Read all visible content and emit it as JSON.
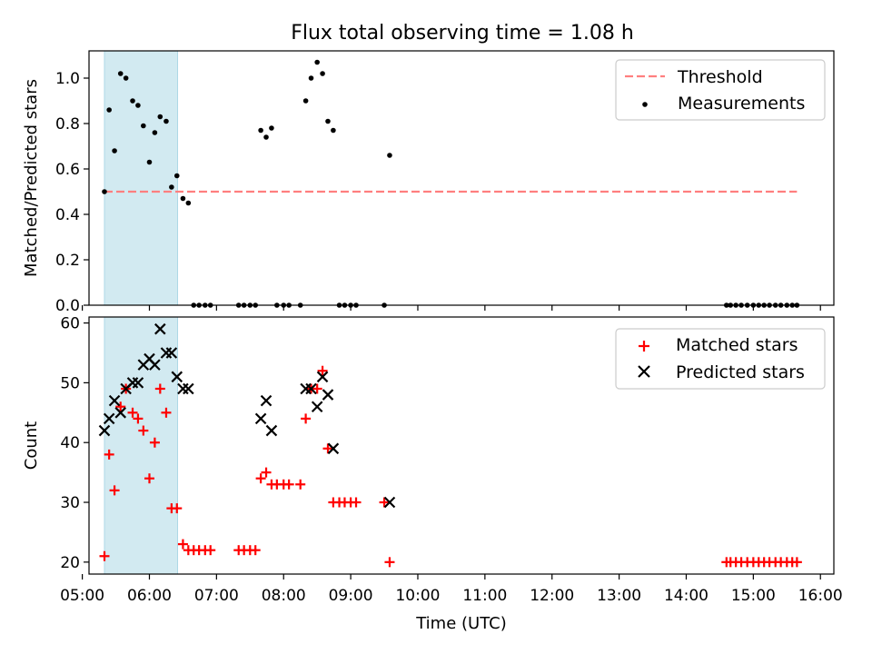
{
  "title": "Flux total observing time = 1.08 h",
  "colors": {
    "threshold": "#ff7f7f",
    "measurement": "#000000",
    "matched": "#ff0000",
    "predicted": "#000000",
    "span": "#add8e6"
  },
  "chart_data": [
    {
      "type": "scatter",
      "ylabel": "Matched/Predicted stars",
      "xlim": [
        5.1,
        16.2
      ],
      "ylim": [
        0.0,
        1.12
      ],
      "yticks": [
        "0.0",
        "0.2",
        "0.4",
        "0.6",
        "0.8",
        "1.0"
      ],
      "legend_position": "upper right",
      "shaded_span": [
        5.33,
        6.42
      ],
      "threshold": {
        "label": "Threshold",
        "y": 0.5,
        "x": [
          5.33,
          15.65
        ],
        "style": "dashed"
      },
      "series": [
        {
          "name": "Measurements",
          "marker": "dot",
          "points": [
            [
              5.33,
              0.5
            ],
            [
              5.4,
              0.86
            ],
            [
              5.48,
              0.68
            ],
            [
              5.57,
              1.02
            ],
            [
              5.65,
              1.0
            ],
            [
              5.75,
              0.9
            ],
            [
              5.83,
              0.88
            ],
            [
              5.91,
              0.79
            ],
            [
              6.0,
              0.63
            ],
            [
              6.08,
              0.76
            ],
            [
              6.16,
              0.83
            ],
            [
              6.25,
              0.81
            ],
            [
              6.33,
              0.52
            ],
            [
              6.41,
              0.57
            ],
            [
              6.5,
              0.47
            ],
            [
              6.58,
              0.45
            ],
            [
              6.66,
              0.0
            ],
            [
              6.74,
              0.0
            ],
            [
              6.83,
              0.0
            ],
            [
              6.91,
              0.0
            ],
            [
              7.33,
              0.0
            ],
            [
              7.41,
              0.0
            ],
            [
              7.5,
              0.0
            ],
            [
              7.58,
              0.0
            ],
            [
              7.66,
              0.77
            ],
            [
              7.74,
              0.74
            ],
            [
              7.82,
              0.78
            ],
            [
              7.9,
              0.0
            ],
            [
              8.0,
              0.0
            ],
            [
              8.08,
              0.0
            ],
            [
              8.25,
              0.0
            ],
            [
              8.33,
              0.9
            ],
            [
              8.41,
              1.0
            ],
            [
              8.5,
              1.07
            ],
            [
              8.58,
              1.02
            ],
            [
              8.66,
              0.81
            ],
            [
              8.74,
              0.77
            ],
            [
              8.83,
              0.0
            ],
            [
              8.91,
              0.0
            ],
            [
              9.0,
              0.0
            ],
            [
              9.08,
              0.0
            ],
            [
              9.5,
              0.0
            ],
            [
              9.58,
              0.66
            ],
            [
              14.6,
              0.0
            ],
            [
              14.66,
              0.0
            ],
            [
              14.74,
              0.0
            ],
            [
              14.82,
              0.0
            ],
            [
              14.91,
              0.0
            ],
            [
              15.0,
              0.0
            ],
            [
              15.08,
              0.0
            ],
            [
              15.16,
              0.0
            ],
            [
              15.24,
              0.0
            ],
            [
              15.33,
              0.0
            ],
            [
              15.41,
              0.0
            ],
            [
              15.5,
              0.0
            ],
            [
              15.58,
              0.0
            ],
            [
              15.65,
              0.0
            ]
          ]
        }
      ]
    },
    {
      "type": "scatter",
      "ylabel": "Count",
      "xlabel": "Time (UTC)",
      "xlim": [
        5.1,
        16.2
      ],
      "ylim": [
        18,
        61
      ],
      "yticks": [
        "20",
        "30",
        "40",
        "50",
        "60"
      ],
      "xticks": [
        "05:00",
        "06:00",
        "07:00",
        "08:00",
        "09:00",
        "10:00",
        "11:00",
        "12:00",
        "13:00",
        "14:00",
        "15:00",
        "16:00"
      ],
      "legend_position": "upper right",
      "shaded_span": [
        5.33,
        6.42
      ],
      "series": [
        {
          "name": "Matched stars",
          "marker": "plus",
          "points": [
            [
              5.33,
              21
            ],
            [
              5.4,
              38
            ],
            [
              5.48,
              32
            ],
            [
              5.57,
              46
            ],
            [
              5.65,
              49
            ],
            [
              5.75,
              45
            ],
            [
              5.83,
              44
            ],
            [
              5.91,
              42
            ],
            [
              6.0,
              34
            ],
            [
              6.08,
              40
            ],
            [
              6.16,
              49
            ],
            [
              6.25,
              45
            ],
            [
              6.33,
              29
            ],
            [
              6.41,
              29
            ],
            [
              6.5,
              23
            ],
            [
              6.58,
              22
            ],
            [
              6.66,
              22
            ],
            [
              6.74,
              22
            ],
            [
              6.83,
              22
            ],
            [
              6.91,
              22
            ],
            [
              7.33,
              22
            ],
            [
              7.41,
              22
            ],
            [
              7.5,
              22
            ],
            [
              7.58,
              22
            ],
            [
              7.66,
              34
            ],
            [
              7.74,
              35
            ],
            [
              7.82,
              33
            ],
            [
              7.9,
              33
            ],
            [
              8.0,
              33
            ],
            [
              8.08,
              33
            ],
            [
              8.25,
              33
            ],
            [
              8.33,
              44
            ],
            [
              8.41,
              49
            ],
            [
              8.5,
              49
            ],
            [
              8.58,
              52
            ],
            [
              8.66,
              39
            ],
            [
              8.74,
              30
            ],
            [
              8.83,
              30
            ],
            [
              8.91,
              30
            ],
            [
              9.0,
              30
            ],
            [
              9.08,
              30
            ],
            [
              9.5,
              30
            ],
            [
              9.58,
              20
            ],
            [
              14.6,
              20
            ],
            [
              14.66,
              20
            ],
            [
              14.74,
              20
            ],
            [
              14.82,
              20
            ],
            [
              14.91,
              20
            ],
            [
              15.0,
              20
            ],
            [
              15.08,
              20
            ],
            [
              15.16,
              20
            ],
            [
              15.24,
              20
            ],
            [
              15.33,
              20
            ],
            [
              15.41,
              20
            ],
            [
              15.5,
              20
            ],
            [
              15.58,
              20
            ],
            [
              15.65,
              20
            ]
          ]
        },
        {
          "name": "Predicted stars",
          "marker": "x",
          "points": [
            [
              5.33,
              42
            ],
            [
              5.4,
              44
            ],
            [
              5.48,
              47
            ],
            [
              5.57,
              45
            ],
            [
              5.65,
              49
            ],
            [
              5.75,
              50
            ],
            [
              5.83,
              50
            ],
            [
              5.91,
              53
            ],
            [
              6.0,
              54
            ],
            [
              6.08,
              53
            ],
            [
              6.16,
              59
            ],
            [
              6.25,
              55
            ],
            [
              6.33,
              55
            ],
            [
              6.41,
              51
            ],
            [
              6.5,
              49
            ],
            [
              6.58,
              49
            ],
            [
              7.66,
              44
            ],
            [
              7.74,
              47
            ],
            [
              7.82,
              42
            ],
            [
              8.33,
              49
            ],
            [
              8.41,
              49
            ],
            [
              8.5,
              46
            ],
            [
              8.58,
              51
            ],
            [
              8.66,
              48
            ],
            [
              8.74,
              39
            ],
            [
              9.58,
              30
            ]
          ]
        }
      ]
    }
  ]
}
